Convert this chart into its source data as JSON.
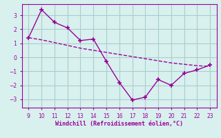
{
  "x": [
    9,
    10,
    11,
    12,
    13,
    14,
    15,
    16,
    17,
    18,
    19,
    20,
    21,
    22,
    23
  ],
  "y_line1": [
    1.4,
    3.4,
    2.5,
    2.1,
    1.2,
    1.3,
    -0.3,
    -1.8,
    -3.05,
    -2.85,
    -1.6,
    -2.0,
    -1.15,
    -0.9,
    -0.55
  ],
  "y_line2": [
    1.4,
    1.25,
    1.05,
    0.85,
    0.65,
    0.5,
    0.35,
    0.2,
    0.05,
    -0.1,
    -0.25,
    -0.4,
    -0.5,
    -0.6,
    -0.65
  ],
  "line_color": "#990099",
  "bg_color": "#d8f0ee",
  "grid_color": "#aacccc",
  "xlabel": "Windchill (Refroidissement éolien,°C)",
  "xlim": [
    8.5,
    23.5
  ],
  "ylim": [
    -3.6,
    3.8
  ],
  "yticks": [
    -3,
    -2,
    -1,
    0,
    1,
    2,
    3
  ],
  "xticks": [
    9,
    10,
    11,
    12,
    13,
    14,
    15,
    16,
    17,
    18,
    19,
    20,
    21,
    22,
    23
  ],
  "marker": "+",
  "markersize": 5,
  "linewidth": 1.0,
  "markeredgewidth": 1.2
}
